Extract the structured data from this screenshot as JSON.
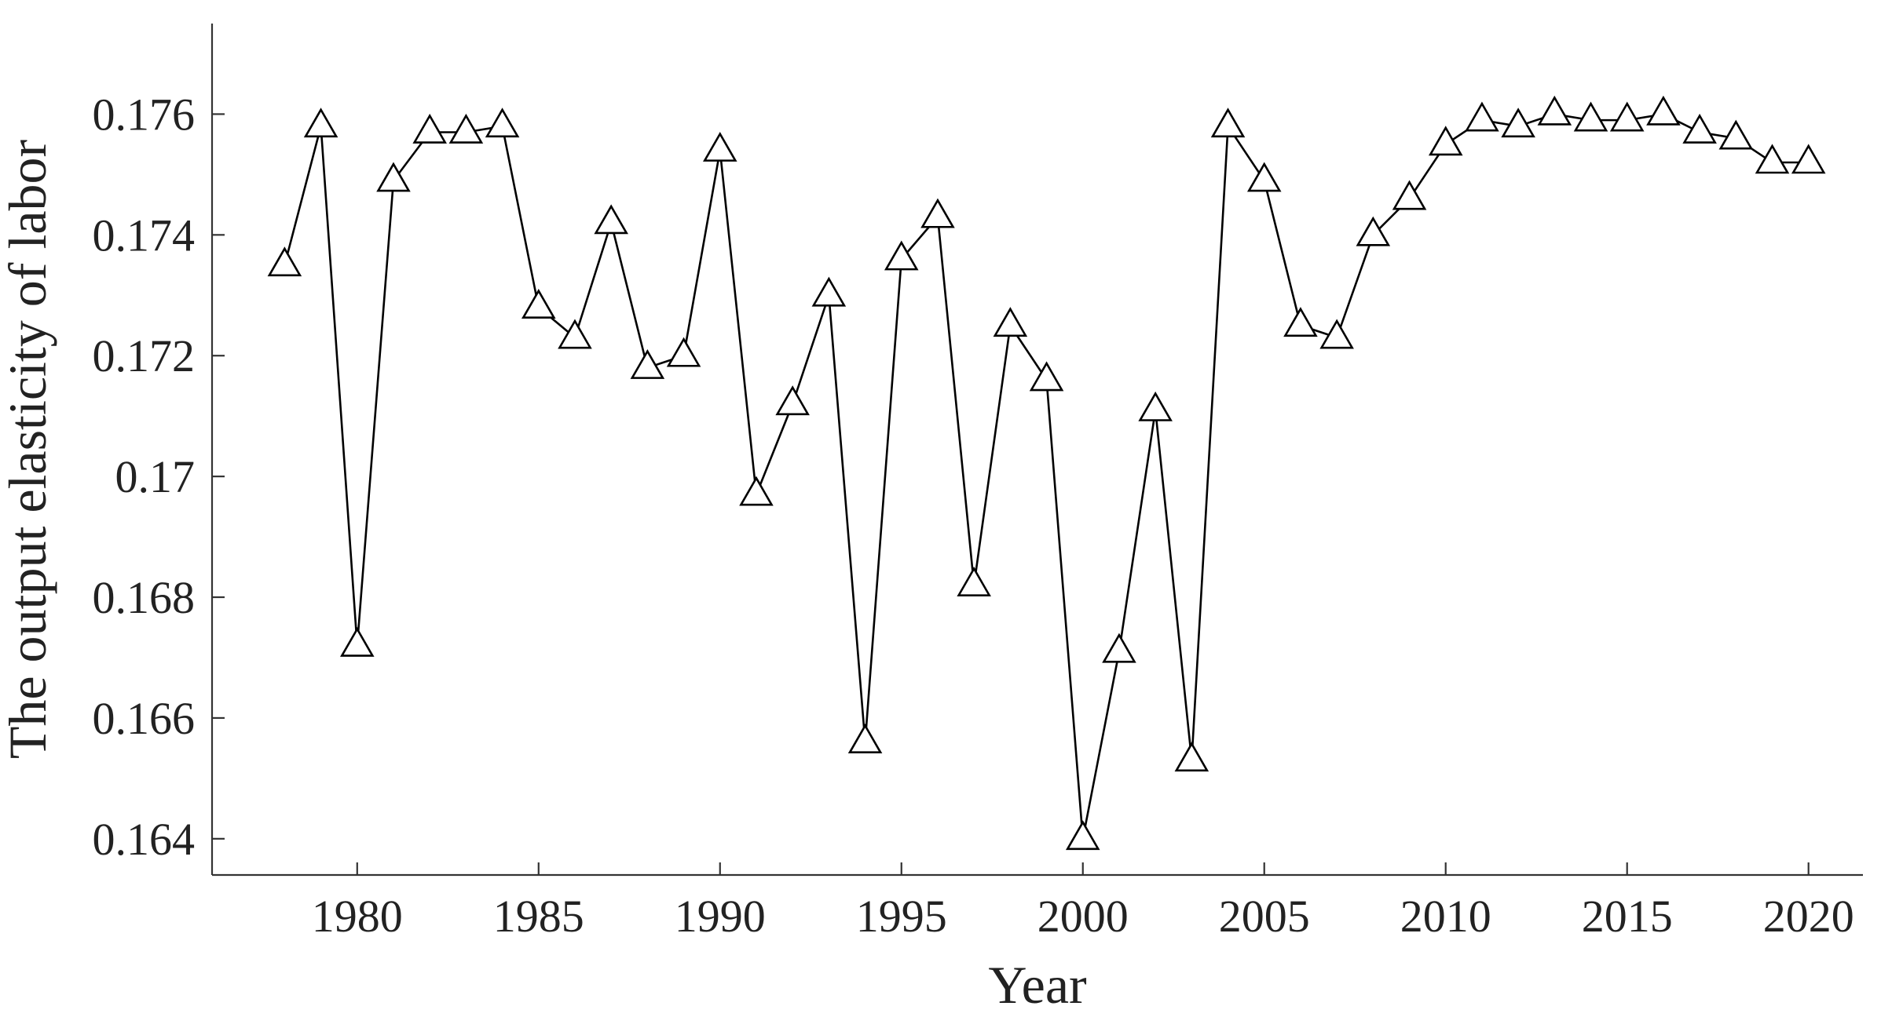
{
  "chart_data": {
    "type": "line",
    "title": "",
    "xlabel": "Year",
    "ylabel": "The output elasticity of labor",
    "xlim": [
      1976,
      2021.5
    ],
    "ylim": [
      0.1634,
      0.1775
    ],
    "grid": false,
    "legend": "none",
    "marker": "triangle",
    "line_color": "#000000",
    "x_ticks": [
      1980,
      1985,
      1990,
      1995,
      2000,
      2005,
      2010,
      2015,
      2020
    ],
    "x_tick_labels": [
      "1980",
      "1985",
      "1990",
      "1995",
      "2000",
      "2005",
      "2010",
      "2015",
      "2020"
    ],
    "y_ticks": [
      0.164,
      0.166,
      0.168,
      0.17,
      0.172,
      0.174,
      0.176
    ],
    "y_tick_labels": [
      "0.164",
      "0.166",
      "0.168",
      "0.17",
      "0.172",
      "0.174",
      "0.176"
    ],
    "x": [
      1978,
      1979,
      1980,
      1981,
      1982,
      1983,
      1984,
      1985,
      1986,
      1987,
      1988,
      1989,
      1990,
      1991,
      1992,
      1993,
      1994,
      1995,
      1996,
      1997,
      1998,
      1999,
      2000,
      2001,
      2002,
      2003,
      2004,
      2005,
      2006,
      2007,
      2008,
      2009,
      2010,
      2011,
      2012,
      2013,
      2014,
      2015,
      2016,
      2017,
      2018,
      2019,
      2020
    ],
    "series": [
      {
        "values": [
          0.1735,
          0.1758,
          0.1672,
          0.1749,
          0.1757,
          0.1757,
          0.1758,
          0.1728,
          0.1723,
          0.1742,
          0.1718,
          0.172,
          0.1754,
          0.1697,
          0.1712,
          0.173,
          0.1656,
          0.1736,
          0.1743,
          0.1682,
          0.1725,
          0.1716,
          0.164,
          0.1671,
          0.1711,
          0.1653,
          0.1758,
          0.1749,
          0.1725,
          0.1723,
          0.174,
          0.1746,
          0.1755,
          0.1759,
          0.1758,
          0.176,
          0.1759,
          0.1759,
          0.176,
          0.1757,
          0.1756,
          0.1752,
          0.1752
        ]
      }
    ]
  }
}
